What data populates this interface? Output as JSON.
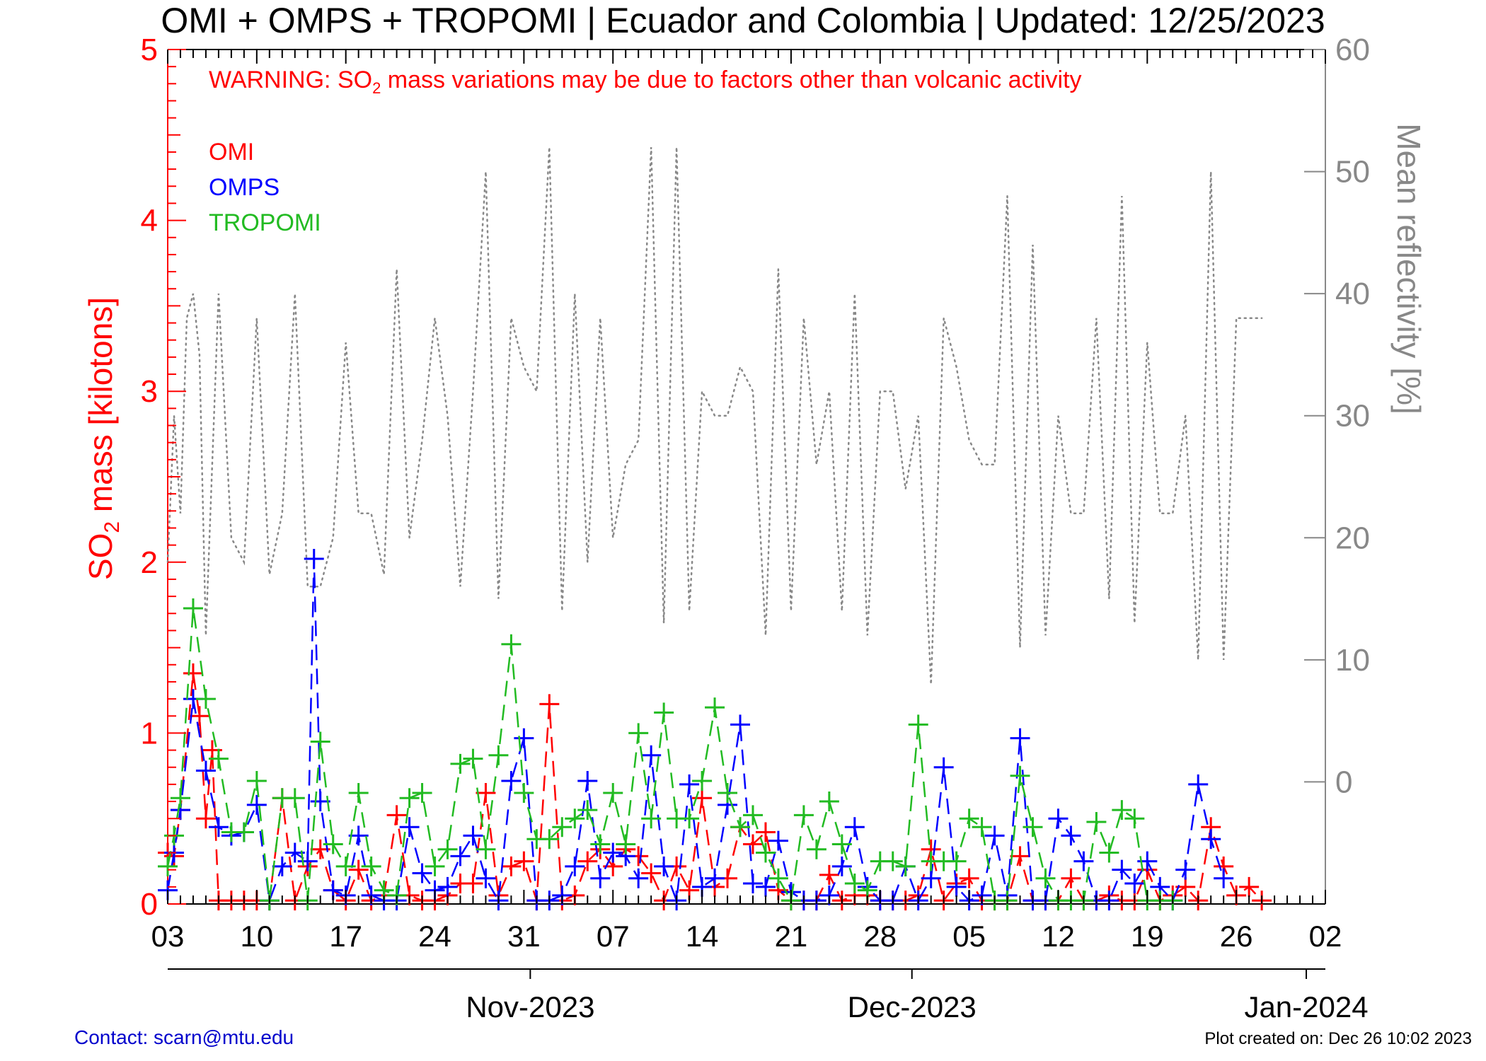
{
  "chart_data": {
    "type": "line",
    "title": "OMI + OMPS + TROPOMI | Ecuador and Colombia | Updated: 12/25/2023",
    "warning": {
      "prefix": "WARNING: SO",
      "subscript": "2",
      "suffix": " mass variations may be due to factors other than volcanic activity"
    },
    "ylabel_left": {
      "prefix": "SO",
      "subscript": "2",
      "suffix": " mass [kilotons]"
    },
    "ylabel_right": "Mean reflectivity [%]",
    "ylim_left": [
      0,
      5
    ],
    "ylim_right": [
      -10,
      60
    ],
    "yticks_left": [
      "0",
      "1",
      "2",
      "3",
      "4",
      "5"
    ],
    "yticks_right": [
      "0",
      "10",
      "20",
      "30",
      "40",
      "50",
      "60"
    ],
    "xlim_days": [
      0,
      91
    ],
    "xticks_days": [
      "03",
      "10",
      "17",
      "24",
      "31",
      "07",
      "14",
      "21",
      "28",
      "05",
      "12",
      "19",
      "26",
      "02"
    ],
    "months": [
      "Nov-2023",
      "Dec-2023",
      "Jan-2024"
    ],
    "month_day_offsets": [
      28.5,
      58.5,
      89.5
    ],
    "x_axis_start": "2023-10-03",
    "colors": {
      "OMI": "#ff0000",
      "OMPS": "#0000ff",
      "TROPOMI": "#22bb22",
      "reflectivity": "#888888",
      "contact": "#0000cc"
    },
    "series": [
      {
        "name": "OMI",
        "x": [
          0,
          0.5,
          1,
          2,
          2.5,
          3,
          3.5,
          4,
          5,
          6,
          7,
          8,
          9,
          10,
          11,
          12,
          13,
          14,
          15,
          16,
          17,
          18,
          19,
          20,
          21,
          22,
          23,
          24,
          25,
          26,
          27,
          28,
          29,
          30,
          31,
          32,
          33,
          34,
          35,
          36,
          37,
          38,
          39,
          40,
          41,
          42,
          43,
          44,
          45,
          46,
          47,
          48,
          49,
          50,
          51,
          52,
          53,
          54,
          55,
          56,
          57,
          58,
          59,
          60,
          61,
          62,
          63,
          64,
          65,
          66,
          67,
          68,
          69,
          70,
          71,
          72,
          73,
          74,
          75,
          76,
          77,
          78,
          79,
          80,
          81,
          82,
          83,
          84,
          85,
          86
        ],
        "y": [
          0.3,
          0.28,
          0.55,
          1.35,
          1.1,
          0.5,
          0.9,
          0.02,
          0.02,
          0.02,
          0.02,
          0.02,
          0.62,
          0.02,
          0.22,
          0.32,
          0.08,
          0.02,
          0.2,
          0.02,
          0.05,
          0.52,
          0.05,
          0.02,
          0.02,
          0.05,
          0.12,
          0.12,
          0.65,
          0.05,
          0.22,
          0.25,
          0.02,
          1.17,
          0.02,
          0.05,
          0.25,
          0.32,
          0.22,
          0.32,
          0.28,
          0.18,
          0.02,
          0.22,
          0.08,
          0.62,
          0.1,
          0.15,
          0.45,
          0.35,
          0.42,
          0.08,
          0.02,
          0.02,
          0.02,
          0.17,
          0.02,
          0.05,
          0.05,
          0.02,
          0.02,
          0.02,
          0.05,
          0.32,
          0.02,
          0.12,
          0.15,
          0.02,
          0.02,
          0.02,
          0.28,
          0.02,
          0.02,
          0.02,
          0.15,
          0.02,
          0.02,
          0.05,
          0.02,
          0.02,
          0.2,
          0.02,
          0.05,
          0.1,
          0.02,
          0.45,
          0.22,
          0.05,
          0.1,
          0.02
        ]
      },
      {
        "name": "OMPS",
        "x": [
          0,
          0.5,
          1,
          2,
          3,
          4,
          5,
          6,
          7,
          8,
          9,
          10,
          11,
          11.5,
          12,
          13,
          14,
          15,
          16,
          17,
          18,
          19,
          20,
          21,
          22,
          23,
          24,
          25,
          26,
          27,
          28,
          29,
          30,
          31,
          32,
          33,
          34,
          35,
          36,
          37,
          38,
          39,
          40,
          41,
          42,
          43,
          44,
          45,
          46,
          47,
          48,
          49,
          50,
          51,
          52,
          53,
          54,
          55,
          56,
          57,
          58,
          59,
          60,
          61,
          62,
          63,
          64,
          65,
          66,
          67,
          68,
          69,
          70,
          71,
          72,
          73,
          74,
          75,
          76,
          77,
          78,
          79,
          80,
          81,
          82,
          83
        ],
        "y": [
          0.08,
          0.3,
          0.55,
          1.2,
          0.78,
          0.45,
          0.4,
          0.42,
          0.58,
          0.02,
          0.22,
          0.3,
          0.25,
          2.02,
          0.6,
          0.08,
          0.05,
          0.4,
          0.05,
          0.02,
          0.02,
          0.45,
          0.18,
          0.08,
          0.1,
          0.28,
          0.4,
          0.15,
          0.02,
          0.72,
          0.97,
          0.02,
          0.02,
          0.05,
          0.22,
          0.72,
          0.15,
          0.3,
          0.28,
          0.15,
          0.87,
          0.22,
          0.02,
          0.7,
          0.1,
          0.15,
          0.58,
          1.05,
          0.12,
          0.1,
          0.37,
          0.07,
          0.02,
          0.02,
          0.05,
          0.22,
          0.45,
          0.1,
          0.02,
          0.02,
          0.22,
          0.02,
          0.15,
          0.8,
          0.1,
          0.02,
          0.05,
          0.4,
          0.05,
          0.97,
          0.02,
          0.02,
          0.5,
          0.4,
          0.25,
          0.02,
          0.02,
          0.2,
          0.12,
          0.25,
          0.1,
          0.02,
          0.2,
          0.7,
          0.38,
          0.15
        ]
      },
      {
        "name": "TROPOMI",
        "x": [
          0,
          0.5,
          1,
          2,
          3,
          4,
          5,
          6,
          7,
          8,
          9,
          10,
          11,
          12,
          13,
          14,
          15,
          16,
          17,
          18,
          19,
          20,
          21,
          22,
          23,
          24,
          25,
          26,
          27,
          28,
          29,
          30,
          31,
          32,
          33,
          34,
          35,
          36,
          37,
          38,
          39,
          40,
          41,
          42,
          43,
          44,
          45,
          46,
          47,
          48,
          49,
          50,
          51,
          52,
          53,
          54,
          55,
          56,
          57,
          58,
          59,
          60,
          61,
          62,
          63,
          64,
          65,
          66,
          67,
          68,
          69,
          70,
          71,
          72,
          73,
          74,
          75,
          76,
          77,
          78,
          79
        ],
        "y": [
          0.22,
          0.4,
          0.62,
          1.73,
          1.2,
          0.85,
          0.42,
          0.42,
          0.72,
          0.02,
          0.62,
          0.62,
          0.02,
          0.95,
          0.35,
          0.22,
          0.65,
          0.22,
          0.08,
          0.05,
          0.62,
          0.65,
          0.22,
          0.32,
          0.82,
          0.85,
          0.32,
          0.87,
          1.52,
          0.65,
          0.38,
          0.38,
          0.45,
          0.5,
          0.55,
          0.35,
          0.65,
          0.35,
          1.0,
          0.5,
          1.12,
          0.5,
          0.5,
          0.72,
          1.15,
          0.65,
          0.45,
          0.52,
          0.3,
          0.15,
          0.02,
          0.52,
          0.32,
          0.6,
          0.35,
          0.12,
          0.08,
          0.25,
          0.25,
          0.22,
          1.05,
          0.25,
          0.25,
          0.25,
          0.5,
          0.45,
          0.02,
          0.02,
          0.75,
          0.45,
          0.15,
          0.02,
          0.02,
          0.02,
          0.48,
          0.3,
          0.55,
          0.5,
          0.02,
          0.02,
          0.02
        ]
      },
      {
        "name": "Mean reflectivity",
        "x": [
          0,
          0.5,
          1,
          1.5,
          2,
          2.5,
          3,
          4,
          5,
          6,
          7,
          8,
          9,
          10,
          11,
          12,
          13,
          14,
          15,
          16,
          17,
          18,
          19,
          20,
          21,
          22,
          23,
          24,
          25,
          26,
          27,
          28,
          29,
          30,
          31,
          32,
          33,
          34,
          35,
          36,
          37,
          38,
          39,
          40,
          41,
          42,
          43,
          44,
          45,
          46,
          47,
          48,
          49,
          50,
          51,
          52,
          53,
          54,
          55,
          56,
          57,
          58,
          59,
          60,
          61,
          62,
          63,
          64,
          65,
          66,
          67,
          68,
          69,
          70,
          71,
          72,
          73,
          74,
          75,
          76,
          77,
          78,
          79,
          80,
          81,
          82,
          83,
          84,
          85,
          86
        ],
        "y": [
          18,
          30,
          22,
          38,
          40,
          35,
          12,
          40,
          20,
          18,
          38,
          17,
          22,
          40,
          16,
          16,
          20,
          36,
          22,
          22,
          17,
          42,
          20,
          28,
          38,
          30,
          16,
          32,
          50,
          15,
          38,
          34,
          32,
          52,
          14,
          40,
          18,
          38,
          20,
          26,
          28,
          52,
          13,
          52,
          14,
          32,
          30,
          30,
          34,
          32,
          12,
          42,
          14,
          38,
          26,
          32,
          14,
          40,
          12,
          32,
          32,
          24,
          30,
          8,
          38,
          34,
          28,
          26,
          26,
          48,
          11,
          44,
          12,
          30,
          22,
          22,
          38,
          15,
          48,
          13,
          36,
          22,
          22,
          30,
          10,
          50,
          10,
          38,
          38,
          38
        ]
      }
    ]
  },
  "footer": {
    "contact": "Contact: scarn@mtu.edu",
    "created": "Plot created on: Dec 26 10:02 2023"
  }
}
